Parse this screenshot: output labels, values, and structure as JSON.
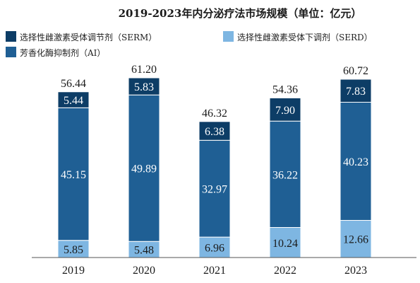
{
  "chart_data": {
    "type": "bar",
    "stacked": true,
    "title": "2019-2023年内分泌疗法市场规模（单位：亿元）",
    "categories": [
      "2019",
      "2020",
      "2021",
      "2022",
      "2023"
    ],
    "series": [
      {
        "name": "选择性雌激素受体下调剂（SERD）",
        "values": [
          5.85,
          5.48,
          6.96,
          10.24,
          12.66
        ],
        "color": "#7eb6e2"
      },
      {
        "name": "芳香化酶抑制剂（AI）",
        "values": [
          45.15,
          49.89,
          32.97,
          36.22,
          40.23
        ],
        "color": "#1f5f94"
      },
      {
        "name": "选择性雌激素受体调节剂（SERM）",
        "values": [
          5.44,
          5.83,
          6.38,
          7.9,
          7.83
        ],
        "color": "#0d3d66"
      }
    ],
    "totals": [
      "56.44",
      "61.20",
      "46.32",
      "54.36",
      "60.72"
    ],
    "labels": {
      "SERD": [
        "5.85",
        "5.48",
        "6.96",
        "10.24",
        "12.66"
      ],
      "AI": [
        "45.15",
        "49.89",
        "32.97",
        "36.22",
        "40.23"
      ],
      "SERM": [
        "5.44",
        "5.83",
        "6.38",
        "7.90",
        "7.83"
      ]
    },
    "legend": {
      "placement": "top",
      "order": [
        "SERM",
        "SERD",
        "AI"
      ],
      "items": {
        "SERM": {
          "text": "选择性雌激素受体调节剂（SERM）",
          "color": "#0d3d66"
        },
        "SERD": {
          "text": "选择性雌激素受体下调剂（SERD）",
          "color": "#7eb6e2"
        },
        "AI": {
          "text": "芳香化酶抑制剂（AI）",
          "color": "#1f5f94"
        }
      }
    },
    "ylim": [
      0,
      61.2
    ],
    "grid": false,
    "xlabel": "",
    "ylabel": ""
  }
}
